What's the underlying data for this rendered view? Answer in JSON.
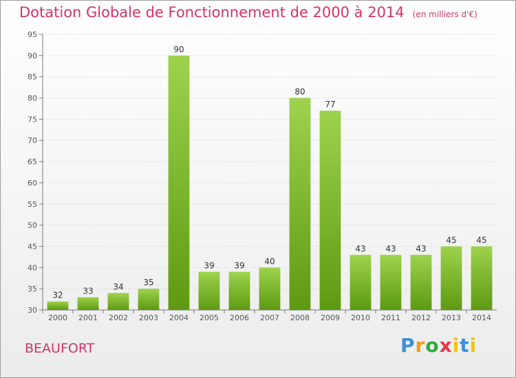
{
  "title": "Dotation Globale de Fonctionnement de 2000 à 2014",
  "unit": "(en milliers d'€)",
  "commune": "BEAUFORT",
  "logo": "Proxiti",
  "colors": {
    "title": "#d0336b",
    "bar_top": "#9ed24d",
    "bar_bottom": "#5d9a12"
  },
  "chart_data": {
    "type": "bar",
    "title": "Dotation Globale de Fonctionnement de 2000 à 2014",
    "subtitle": "(en milliers d'€)",
    "categories": [
      "2000",
      "2001",
      "2002",
      "2003",
      "2004",
      "2005",
      "2006",
      "2007",
      "2008",
      "2009",
      "2010",
      "2011",
      "2012",
      "2013",
      "2014"
    ],
    "values": [
      32,
      33,
      34,
      35,
      90,
      39,
      39,
      40,
      80,
      77,
      43,
      43,
      43,
      45,
      45
    ],
    "ylim": [
      30,
      95
    ],
    "yticks": [
      30,
      35,
      40,
      45,
      50,
      55,
      60,
      65,
      70,
      75,
      80,
      85,
      90,
      95
    ],
    "grid": true
  }
}
